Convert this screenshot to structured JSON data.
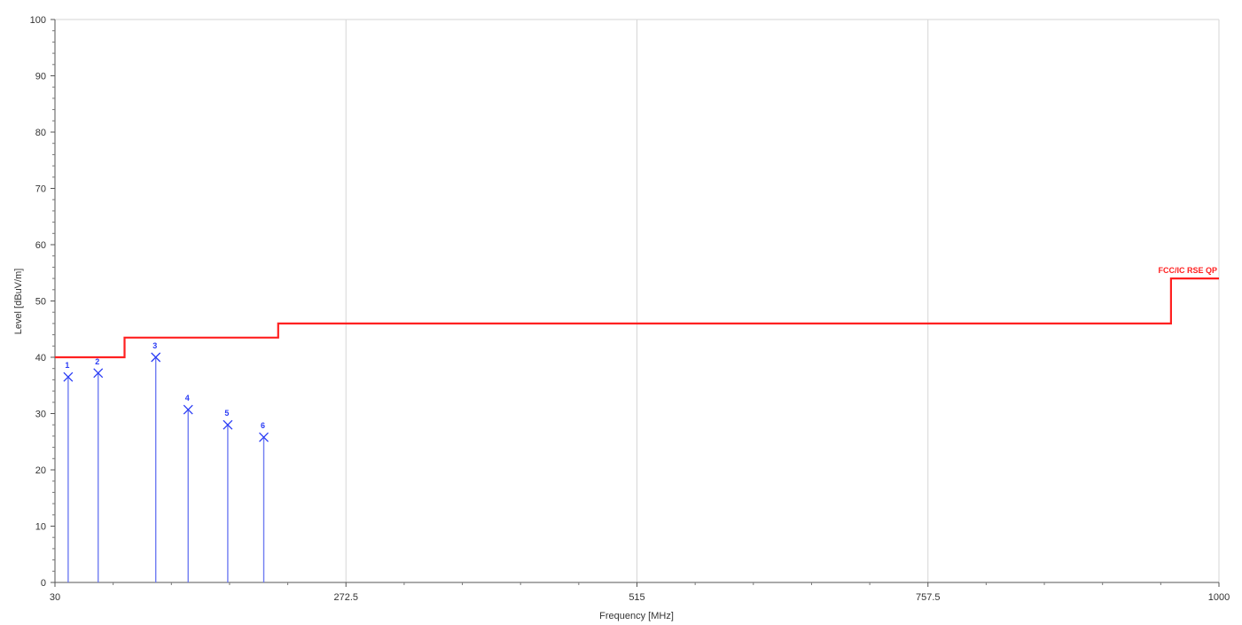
{
  "chart_data": {
    "type": "line",
    "xlabel": "Frequency [MHz]",
    "ylabel": "Level [dBuV/m]",
    "xlim": [
      30,
      1000
    ],
    "ylim": [
      0,
      100
    ],
    "x_ticks": [
      30,
      272.5,
      515,
      757.5,
      1000
    ],
    "x_tick_labels": [
      "30",
      "272.5",
      "515",
      "757.5",
      "1000"
    ],
    "y_ticks": [
      0,
      10,
      20,
      30,
      40,
      50,
      60,
      70,
      80,
      90,
      100
    ],
    "y_tick_labels": [
      "0",
      "10",
      "20",
      "30",
      "40",
      "50",
      "60",
      "70",
      "80",
      "90",
      "100"
    ],
    "grid": true,
    "limit_line": {
      "name": "FCC/IC RSE QP",
      "color": "#ff2020",
      "points": [
        [
          30,
          40
        ],
        [
          88,
          40
        ],
        [
          88,
          43.5
        ],
        [
          216,
          43.5
        ],
        [
          216,
          46
        ],
        [
          960,
          46
        ],
        [
          960,
          54
        ],
        [
          1000,
          54
        ]
      ]
    },
    "markers": {
      "color": "#2a3cf5",
      "points": [
        {
          "label": "1",
          "x": 41,
          "y": 36.5
        },
        {
          "label": "2",
          "x": 66,
          "y": 37.2
        },
        {
          "label": "3",
          "x": 114,
          "y": 40.0
        },
        {
          "label": "4",
          "x": 141,
          "y": 30.7
        },
        {
          "label": "5",
          "x": 174,
          "y": 28.0
        },
        {
          "label": "6",
          "x": 204,
          "y": 25.8
        }
      ]
    }
  }
}
